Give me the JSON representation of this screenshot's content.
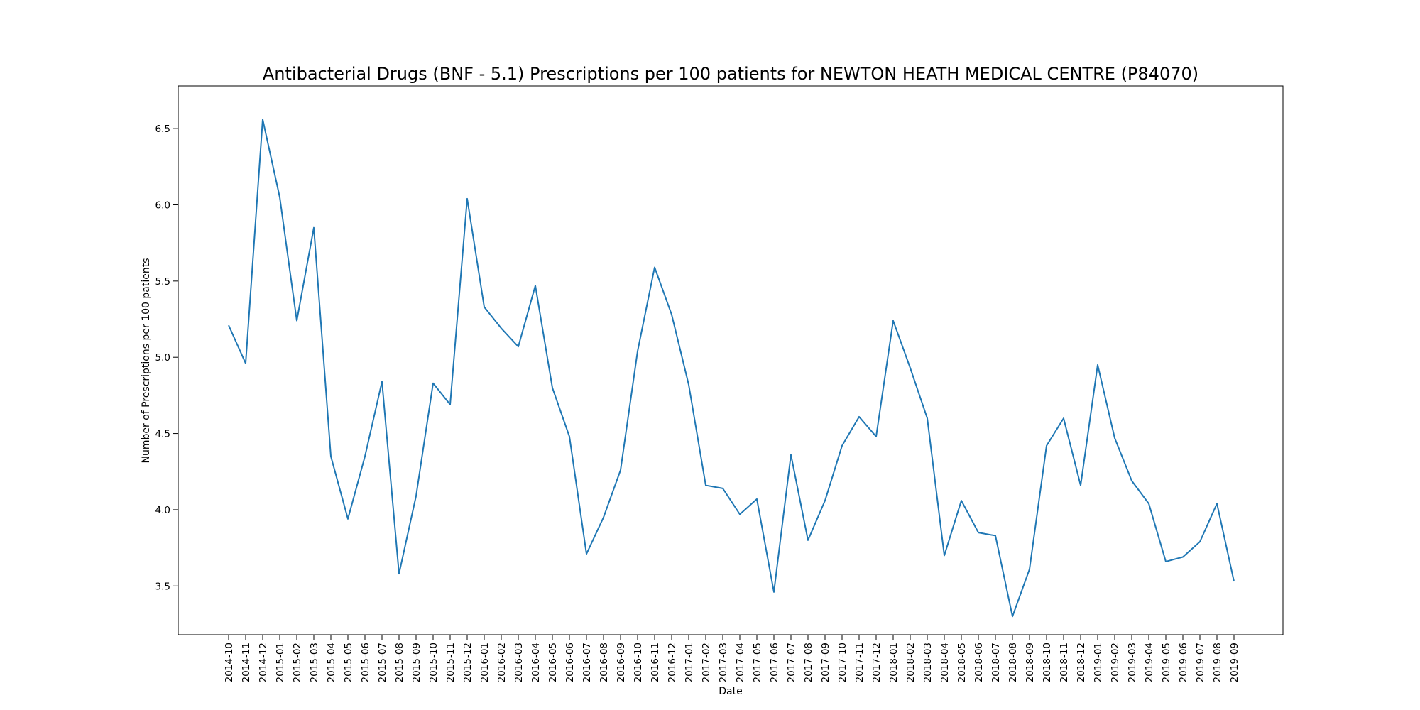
{
  "chart_data": {
    "type": "line",
    "title": "Antibacterial Drugs (BNF - 5.1) Prescriptions per 100 patients for NEWTON HEATH MEDICAL CENTRE (P84070)",
    "xlabel": "Date",
    "ylabel": "Number of Prescriptions per 100 patients",
    "ylim": [
      3.18,
      6.78
    ],
    "yticks": [
      "3.5",
      "4.0",
      "4.5",
      "5.0",
      "5.5",
      "6.0",
      "6.5"
    ],
    "grid": false,
    "legend": "none",
    "line_color": "#1f77b4",
    "categories": [
      "2014-10",
      "2014-11",
      "2014-12",
      "2015-01",
      "2015-02",
      "2015-03",
      "2015-04",
      "2015-05",
      "2015-06",
      "2015-07",
      "2015-08",
      "2015-09",
      "2015-10",
      "2015-11",
      "2015-12",
      "2016-01",
      "2016-02",
      "2016-03",
      "2016-04",
      "2016-05",
      "2016-06",
      "2016-07",
      "2016-08",
      "2016-09",
      "2016-10",
      "2016-11",
      "2016-12",
      "2017-01",
      "2017-02",
      "2017-03",
      "2017-04",
      "2017-05",
      "2017-06",
      "2017-07",
      "2017-08",
      "2017-09",
      "2017-10",
      "2017-11",
      "2017-12",
      "2018-01",
      "2018-02",
      "2018-03",
      "2018-04",
      "2018-05",
      "2018-06",
      "2018-07",
      "2018-08",
      "2018-09",
      "2018-10",
      "2018-11",
      "2018-12",
      "2019-01",
      "2019-02",
      "2019-03",
      "2019-04",
      "2019-05",
      "2019-06",
      "2019-07",
      "2019-08",
      "2019-09"
    ],
    "values": [
      5.21,
      4.96,
      6.56,
      6.05,
      5.24,
      5.85,
      4.35,
      3.94,
      4.35,
      4.84,
      3.58,
      4.09,
      4.83,
      4.69,
      6.04,
      5.33,
      5.19,
      5.07,
      5.47,
      4.8,
      4.48,
      3.71,
      3.95,
      4.26,
      5.04,
      5.59,
      5.28,
      4.82,
      4.16,
      4.14,
      3.97,
      4.07,
      3.46,
      4.36,
      3.8,
      4.06,
      4.42,
      4.61,
      4.48,
      5.24,
      4.93,
      4.6,
      3.7,
      4.06,
      3.85,
      3.83,
      3.3,
      3.61,
      4.42,
      4.6,
      4.16,
      4.95,
      4.47,
      4.19,
      4.04,
      3.66,
      3.69,
      3.79,
      4.04,
      3.53
    ]
  }
}
